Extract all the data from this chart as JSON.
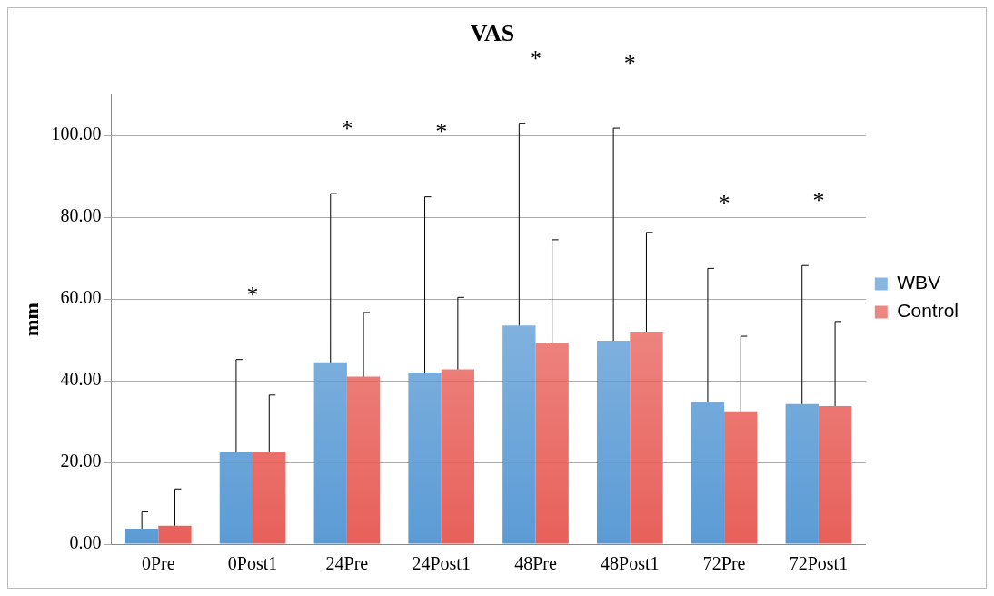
{
  "chart_data": {
    "type": "bar",
    "title": "VAS",
    "ylabel": "mm",
    "categories": [
      "0Pre",
      "0Post1",
      "24Pre",
      "24Post1",
      "48Pre",
      "48Post1",
      "72Pre",
      "72Post1"
    ],
    "series": [
      {
        "name": "WBV",
        "color": "#5b9bd5",
        "values": [
          3.8,
          22.5,
          44.5,
          42,
          53.5,
          49.8,
          34.8,
          34.3
        ],
        "errors": [
          [
            3.8,
            8.1
          ],
          [
            22.5,
            45.2
          ],
          [
            44.5,
            85.8
          ],
          [
            42,
            85
          ],
          [
            53.5,
            103
          ],
          [
            49.8,
            101.8
          ],
          [
            34.8,
            67.5
          ],
          [
            34.3,
            68.2
          ]
        ]
      },
      {
        "name": "Control",
        "color": "#e8605a",
        "values": [
          4.5,
          22.7,
          41,
          42.8,
          49.3,
          52,
          32.5,
          33.8
        ],
        "errors": [
          [
            4.5,
            13.5
          ],
          [
            22.7,
            36.5
          ],
          [
            41,
            56.7
          ],
          [
            42.8,
            60.4
          ],
          [
            49.3,
            74.5
          ],
          [
            52,
            76.3
          ],
          [
            32.5,
            50.9
          ],
          [
            33.8,
            54.5
          ]
        ]
      }
    ],
    "ylim": [
      0,
      110
    ],
    "yticks": [
      {
        "value": 0,
        "label": "0.00"
      },
      {
        "value": 20,
        "label": "20.00"
      },
      {
        "value": 40,
        "label": "40.00"
      },
      {
        "value": 60,
        "label": "60.00"
      },
      {
        "value": 80,
        "label": "80.00"
      },
      {
        "value": 100,
        "label": "100.00"
      }
    ],
    "grid": "y",
    "legend": "right",
    "annotations": [
      "*",
      "*",
      "*",
      "*",
      "*",
      "*",
      "*"
    ]
  }
}
